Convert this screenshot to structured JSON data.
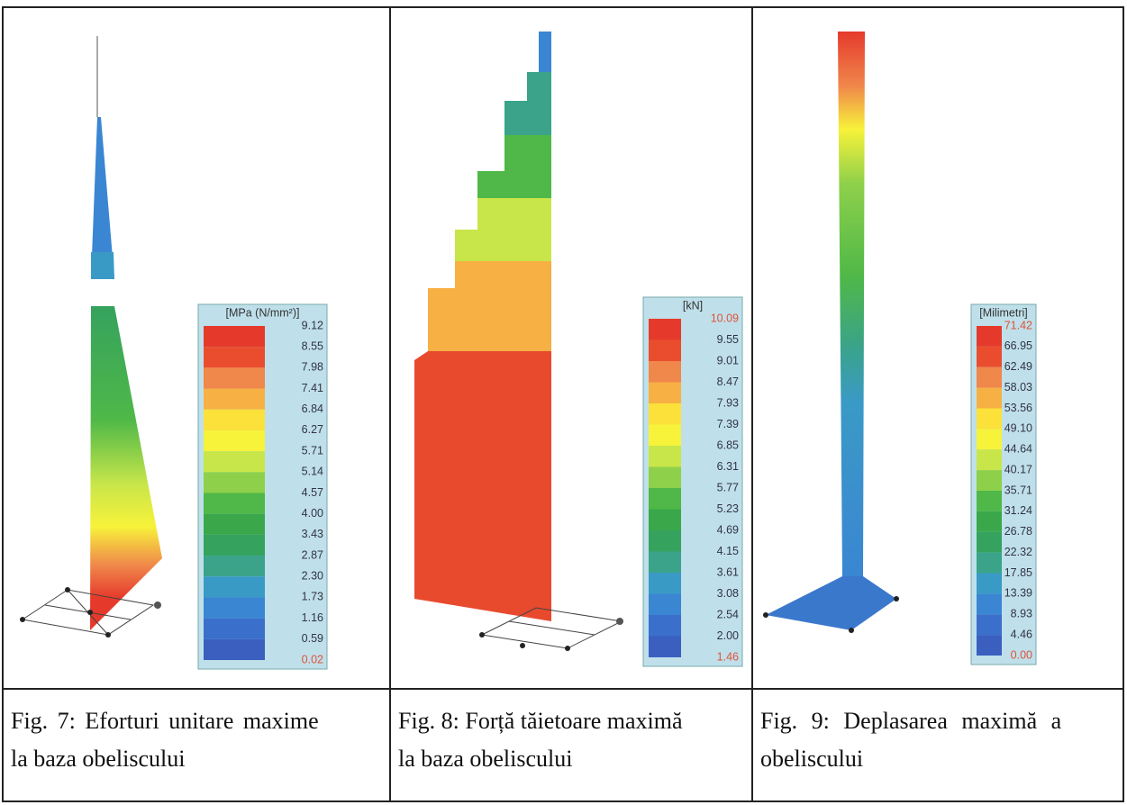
{
  "figures": [
    {
      "legend": {
        "unit": "[MPa (N/mm²)]",
        "values": [
          "9.12",
          "8.55",
          "7.98",
          "7.41",
          "6.84",
          "6.27",
          "5.71",
          "5.14",
          "4.57",
          "4.00",
          "3.43",
          "2.87",
          "2.30",
          "1.73",
          "1.16",
          "0.59",
          "0.02"
        ]
      },
      "caption": {
        "line1": "Fig. 7: Eforturi unitare maxime",
        "line2": "la baza obeliscului"
      }
    },
    {
      "legend": {
        "unit": "[kN]",
        "values": [
          "10.09",
          "9.55",
          "9.01",
          "8.47",
          "7.93",
          "7.39",
          "6.85",
          "6.31",
          "5.77",
          "5.23",
          "4.69",
          "4.15",
          "3.61",
          "3.08",
          "2.54",
          "2.00",
          "1.46"
        ]
      },
      "caption": {
        "line1": "Fig. 8: Forță tăietoare maximă",
        "line2": "la baza obeliscului"
      }
    },
    {
      "legend": {
        "unit": "[Milimetri]",
        "values": [
          "71.42",
          "66.95",
          "62.49",
          "58.03",
          "53.56",
          "49.10",
          "44.64",
          "40.17",
          "35.71",
          "31.24",
          "26.78",
          "22.32",
          "17.85",
          "13.39",
          "8.93",
          "4.46",
          "0.00"
        ]
      },
      "caption": {
        "line1": "Fig. 9: Deplasarea maximă a",
        "line2": "obeliscului"
      }
    }
  ]
}
